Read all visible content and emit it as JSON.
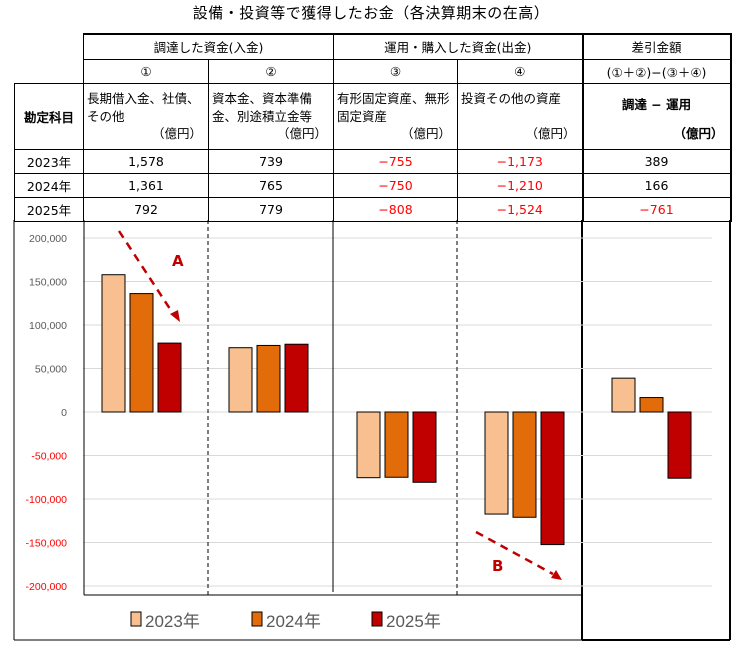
{
  "title": "設備・投資等で獲得したお金（各決算期末の在高）",
  "table": {
    "group_headers": [
      "調達した資金(入金)",
      "運用・購入した資金(出金)",
      "差引金額"
    ],
    "col_numbers": [
      "①",
      "②",
      "③",
      "④",
      "(①＋②)−(③＋④)"
    ],
    "row_header_label": "勘定科目",
    "col_descs": [
      "長期借入金、社債、その他",
      "資本金、資本準備金、別途積立金等",
      "有形固定資産、無形固定資産",
      "投資その他の資産",
      "調達 − 運用"
    ],
    "unit": "（億円）",
    "rows": [
      {
        "year": "2023年",
        "values": [
          "1,578",
          "739",
          "−755",
          "−1,173",
          "389"
        ]
      },
      {
        "year": "2024年",
        "values": [
          "1,361",
          "765",
          "−750",
          "−1,210",
          "166"
        ]
      },
      {
        "year": "2025年",
        "values": [
          "792",
          "779",
          "−808",
          "−1,524",
          "−761"
        ]
      }
    ]
  },
  "chart_data": {
    "type": "bar",
    "categories": [
      "①",
      "②",
      "③",
      "④",
      "差引"
    ],
    "series": [
      {
        "name": "2023年",
        "color": "#F8C090",
        "values": [
          157800,
          73900,
          -75500,
          -117300,
          38900
        ]
      },
      {
        "name": "2024年",
        "color": "#E36C0A",
        "values": [
          136100,
          76500,
          -75000,
          -121000,
          16600
        ]
      },
      {
        "name": "2025年",
        "color": "#C00000",
        "values": [
          79200,
          77900,
          -80800,
          -152400,
          -76100
        ]
      }
    ],
    "ylim": [
      -200000,
      200000
    ],
    "yticks": [
      "200,000",
      "150,000",
      "100,000",
      "50,000",
      "0",
      "-50,000",
      "-100,000",
      "-150,000",
      "-200,000"
    ],
    "ytick_values": [
      200000,
      150000,
      100000,
      50000,
      0,
      -50000,
      -100000,
      -150000,
      -200000
    ],
    "annotations": [
      "A",
      "B"
    ],
    "legend_position": "bottom",
    "grid": true
  }
}
